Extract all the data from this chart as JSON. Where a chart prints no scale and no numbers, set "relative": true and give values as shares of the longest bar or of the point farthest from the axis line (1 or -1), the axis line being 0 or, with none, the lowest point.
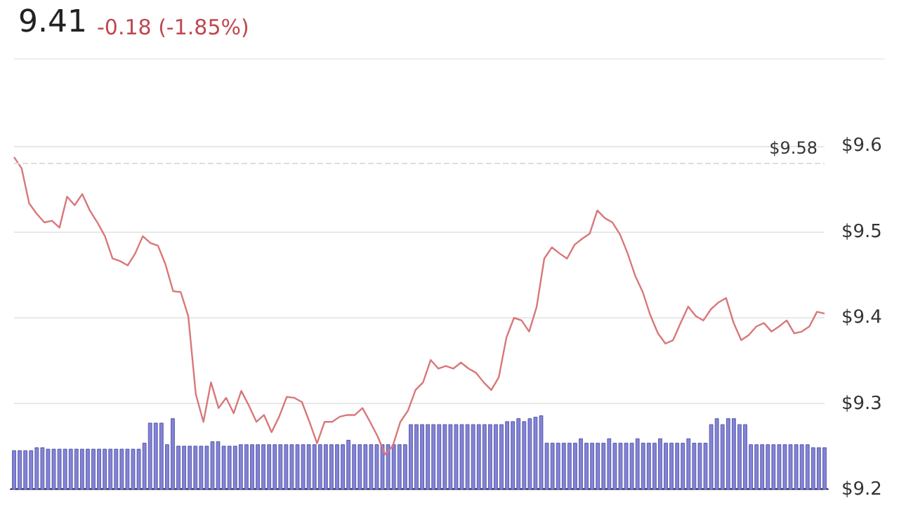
{
  "chart_data": [
    {
      "type": "line",
      "title": "9.41",
      "subtitle": "-0.18 (-1.85%)",
      "categories": [
        null,
        null,
        null,
        null,
        null,
        null,
        null,
        null,
        null,
        null,
        null,
        null,
        null,
        null,
        null,
        null,
        null,
        null,
        null,
        null,
        null,
        null,
        null,
        null,
        null,
        null,
        null,
        null,
        null,
        null,
        null,
        null,
        null,
        null,
        null,
        null,
        null,
        null,
        null,
        null,
        null,
        null,
        null,
        null,
        null,
        null,
        null,
        null,
        null,
        null,
        null,
        null,
        null,
        null,
        null,
        null,
        null,
        null,
        null,
        null,
        null,
        null,
        null,
        null,
        null,
        null,
        null,
        null,
        null,
        null,
        null,
        null,
        null,
        null,
        null,
        null,
        null,
        null,
        null,
        null,
        null,
        null,
        null,
        null,
        null,
        null,
        null,
        null,
        null,
        null,
        null,
        null,
        null,
        null,
        null,
        null,
        null,
        null,
        null,
        null,
        null,
        null,
        null,
        null,
        null,
        null,
        null,
        null
      ],
      "values": [
        9.587,
        9.574,
        9.533,
        9.521,
        9.511,
        9.513,
        9.505,
        9.541,
        9.531,
        9.544,
        9.525,
        9.511,
        9.495,
        9.469,
        9.466,
        9.461,
        9.475,
        9.495,
        9.487,
        9.484,
        9.462,
        9.431,
        9.43,
        9.402,
        9.311,
        9.279,
        9.325,
        9.295,
        9.307,
        9.289,
        9.315,
        9.298,
        9.279,
        9.287,
        9.267,
        9.285,
        9.308,
        9.307,
        9.302,
        9.279,
        9.254,
        9.279,
        9.279,
        9.285,
        9.287,
        9.287,
        9.295,
        9.279,
        9.262,
        9.241,
        9.251,
        9.279,
        9.292,
        9.316,
        9.325,
        9.351,
        9.341,
        9.344,
        9.341,
        9.348,
        9.341,
        9.336,
        9.325,
        9.316,
        9.331,
        9.377,
        9.4,
        9.397,
        9.384,
        9.413,
        9.469,
        9.482,
        9.475,
        9.469,
        9.485,
        9.492,
        9.498,
        9.525,
        9.516,
        9.511,
        9.497,
        9.475,
        9.449,
        9.43,
        9.403,
        9.382,
        9.37,
        9.374,
        9.394,
        9.413,
        9.402,
        9.397,
        9.41,
        9.418,
        9.423,
        9.394,
        9.374,
        9.38,
        9.39,
        9.394,
        9.384,
        9.39,
        9.397,
        9.382,
        9.384,
        9.39,
        9.407,
        9.405
      ],
      "color": "#d9777a",
      "ylim": [
        9.2,
        9.6
      ],
      "yticks": [
        {
          "value": 9.2,
          "label": "$9.2"
        },
        {
          "value": 9.3,
          "label": "$9.3"
        },
        {
          "value": 9.4,
          "label": "$9.4"
        },
        {
          "value": 9.5,
          "label": "$9.5"
        },
        {
          "value": 9.6,
          "label": "$9.6"
        }
      ],
      "grid": "y",
      "ref_lines": [
        {
          "axis": "y",
          "value": 9.58,
          "label": "$9.58",
          "color": "#dddddd",
          "line_style": "dashed"
        }
      ]
    },
    {
      "type": "bar",
      "relative": true,
      "color": "#8484d6",
      "categories": [
        null,
        null,
        null,
        null,
        null,
        null,
        null,
        null,
        null,
        null,
        null,
        null,
        null,
        null,
        null,
        null,
        null,
        null,
        null,
        null,
        null,
        null,
        null,
        null,
        null,
        null,
        null,
        null,
        null,
        null,
        null,
        null,
        null,
        null,
        null,
        null,
        null,
        null,
        null,
        null,
        null,
        null,
        null,
        null,
        null,
        null,
        null,
        null,
        null,
        null,
        null,
        null,
        null,
        null,
        null,
        null,
        null,
        null,
        null,
        null,
        null,
        null,
        null,
        null,
        null,
        null,
        null,
        null,
        null,
        null,
        null,
        null,
        null,
        null,
        null,
        null,
        null,
        null,
        null,
        null,
        null,
        null,
        null,
        null,
        null,
        null,
        null,
        null,
        null,
        null,
        null,
        null,
        null,
        null,
        null,
        null,
        null,
        null,
        null,
        null,
        null,
        null,
        null,
        null,
        null,
        null,
        null,
        null,
        null,
        null,
        null,
        null,
        null,
        null,
        null,
        null,
        null,
        null,
        null,
        null,
        null,
        null,
        null,
        null,
        null,
        null,
        null,
        null,
        null,
        null,
        null,
        null,
        null,
        null,
        null,
        null,
        null,
        null,
        null,
        null,
        null,
        null,
        null,
        null
      ],
      "values": [
        0.53,
        0.53,
        0.53,
        0.53,
        0.57,
        0.57,
        0.55,
        0.55,
        0.55,
        0.55,
        0.55,
        0.55,
        0.55,
        0.55,
        0.55,
        0.55,
        0.55,
        0.55,
        0.55,
        0.55,
        0.55,
        0.55,
        0.55,
        0.63,
        0.9,
        0.9,
        0.9,
        0.61,
        0.96,
        0.59,
        0.59,
        0.59,
        0.59,
        0.59,
        0.59,
        0.65,
        0.65,
        0.59,
        0.59,
        0.59,
        0.61,
        0.61,
        0.61,
        0.61,
        0.61,
        0.61,
        0.61,
        0.61,
        0.61,
        0.61,
        0.61,
        0.61,
        0.61,
        0.61,
        0.61,
        0.61,
        0.61,
        0.61,
        0.61,
        0.67,
        0.61,
        0.61,
        0.61,
        0.61,
        0.61,
        0.61,
        0.61,
        0.61,
        0.61,
        0.61,
        0.88,
        0.88,
        0.88,
        0.88,
        0.88,
        0.88,
        0.88,
        0.88,
        0.88,
        0.88,
        0.88,
        0.88,
        0.88,
        0.88,
        0.88,
        0.88,
        0.88,
        0.92,
        0.92,
        0.96,
        0.92,
        0.96,
        0.98,
        1.0,
        0.63,
        0.63,
        0.63,
        0.63,
        0.63,
        0.63,
        0.69,
        0.63,
        0.63,
        0.63,
        0.63,
        0.69,
        0.63,
        0.63,
        0.63,
        0.63,
        0.69,
        0.63,
        0.63,
        0.63,
        0.69,
        0.63,
        0.63,
        0.63,
        0.63,
        0.69,
        0.63,
        0.63,
        0.63,
        0.88,
        0.96,
        0.88,
        0.96,
        0.96,
        0.88,
        0.88,
        0.61,
        0.61,
        0.61,
        0.61,
        0.61,
        0.61,
        0.61,
        0.61,
        0.61,
        0.61,
        0.61,
        0.57,
        0.57,
        0.57
      ]
    }
  ]
}
